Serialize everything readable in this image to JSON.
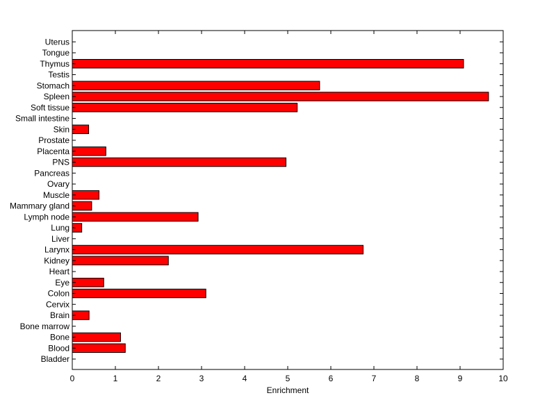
{
  "chart_data": {
    "type": "bar",
    "orientation": "horizontal",
    "xlabel": "Enrichment",
    "ylabel": "",
    "title": "",
    "xlim": [
      0,
      10
    ],
    "xticks": [
      0,
      1,
      2,
      3,
      4,
      5,
      6,
      7,
      8,
      9,
      10
    ],
    "grid": false,
    "bar_color": "#ff0000",
    "edge_color": "#000000",
    "categories": [
      "Bladder",
      "Blood",
      "Bone",
      "Bone marrow",
      "Brain",
      "Cervix",
      "Colon",
      "Eye",
      "Heart",
      "Kidney",
      "Larynx",
      "Liver",
      "Lung",
      "Lymph node",
      "Mammary gland",
      "Muscle",
      "Ovary",
      "Pancreas",
      "PNS",
      "Placenta",
      "Prostate",
      "Skin",
      "Small intestine",
      "Soft tissue",
      "Spleen",
      "Stomach",
      "Testis",
      "Thymus",
      "Tongue",
      "Uterus"
    ],
    "values": [
      0,
      1.23,
      1.12,
      0,
      0.39,
      0,
      3.1,
      0.73,
      0,
      2.23,
      6.75,
      0,
      0.22,
      2.92,
      0.45,
      0.62,
      0,
      0,
      4.96,
      0.78,
      0,
      0.38,
      0,
      5.22,
      9.66,
      5.74,
      0,
      9.08,
      0,
      0
    ]
  }
}
